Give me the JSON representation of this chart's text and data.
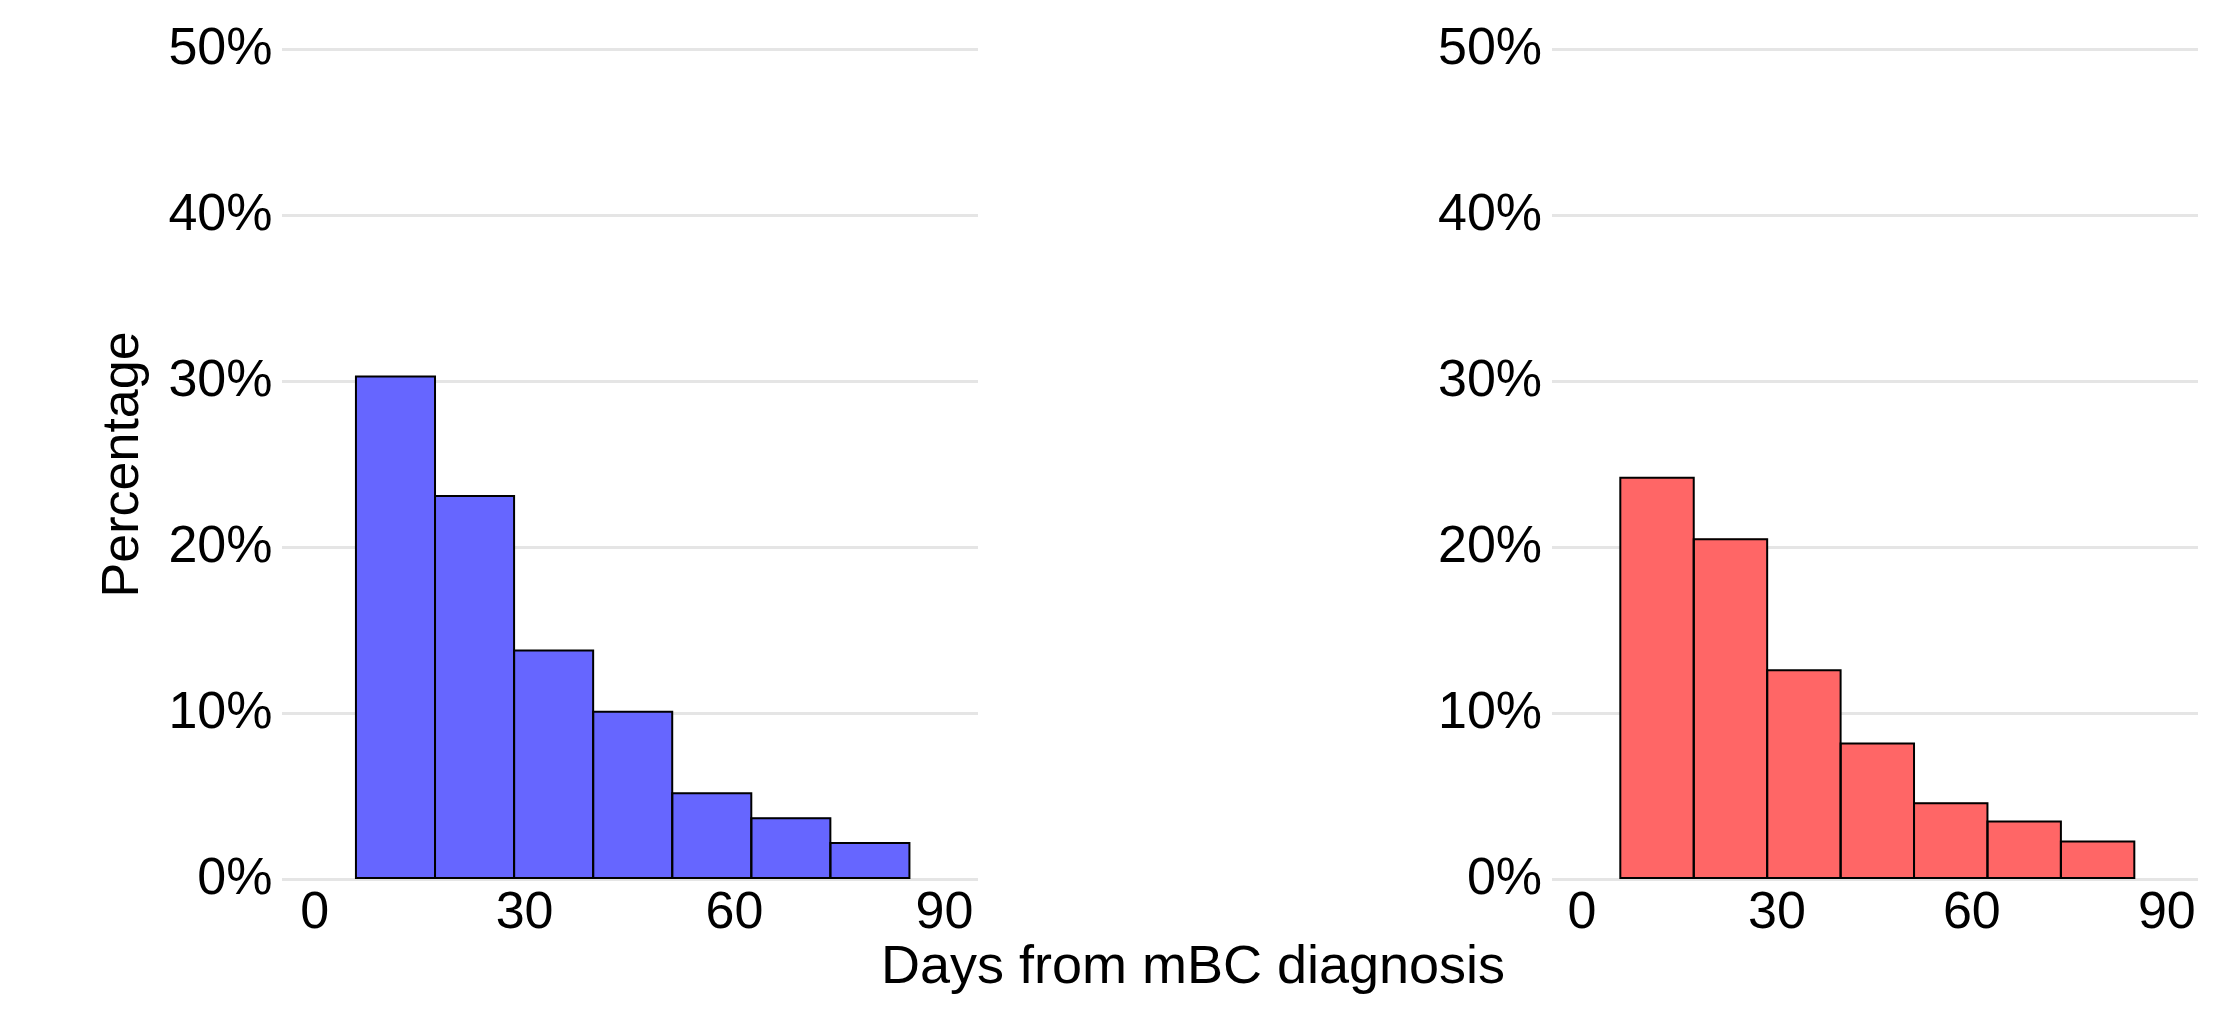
{
  "chart_data": [
    {
      "type": "histogram",
      "ylabel": "Percentage",
      "xlabel": "Days from mBC diagnosis",
      "bins": [
        5.9,
        17.2,
        28.5,
        39.8,
        51.1,
        62.4,
        73.7,
        85.0
      ],
      "values": [
        30.3,
        23.1,
        13.8,
        10.1,
        5.2,
        3.7,
        2.2
      ],
      "color": "#6666ff",
      "xlim": [
        -4.6,
        94.8
      ],
      "xticks": [
        0,
        30,
        60,
        90
      ],
      "ylim": [
        0,
        50
      ],
      "yticks": [
        {
          "value": 0,
          "label": "0%"
        },
        {
          "value": 10,
          "label": "10%"
        },
        {
          "value": 20,
          "label": "20%"
        },
        {
          "value": 30,
          "label": "30%"
        },
        {
          "value": 40,
          "label": "40%"
        },
        {
          "value": 50,
          "label": "50%"
        }
      ],
      "grid": "y"
    },
    {
      "type": "histogram",
      "bins": [
        5.9,
        17.2,
        28.5,
        39.8,
        51.1,
        62.4,
        73.7,
        85.0
      ],
      "values": [
        24.2,
        20.5,
        12.6,
        8.2,
        4.6,
        3.5,
        2.3
      ],
      "color": "#ff6666",
      "xlim": [
        -4.6,
        94.8
      ],
      "xticks": [
        0,
        30,
        60,
        90
      ],
      "ylim": [
        0,
        50
      ],
      "yticks": [
        {
          "value": 0,
          "label": "0%"
        },
        {
          "value": 10,
          "label": "10%"
        },
        {
          "value": 20,
          "label": "20%"
        },
        {
          "value": 30,
          "label": "30%"
        },
        {
          "value": 40,
          "label": "40%"
        },
        {
          "value": 50,
          "label": "50%"
        }
      ],
      "grid": "y"
    }
  ]
}
